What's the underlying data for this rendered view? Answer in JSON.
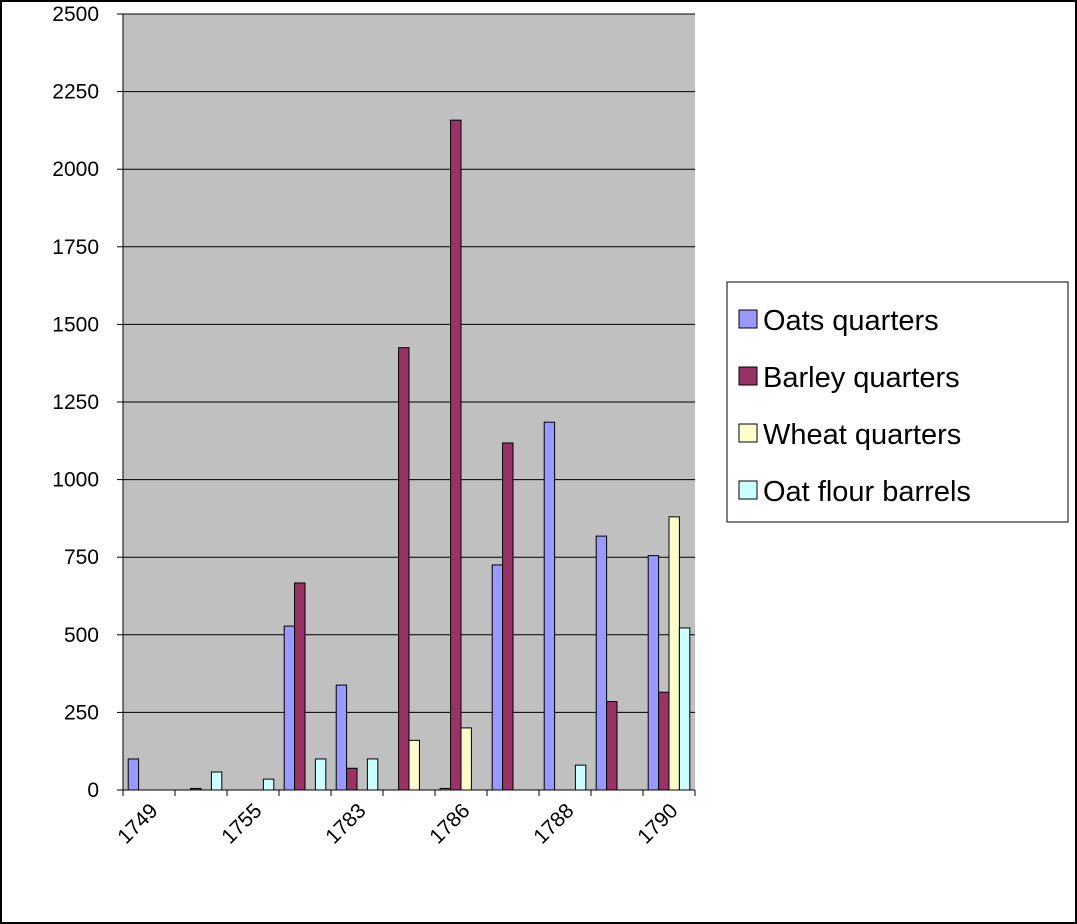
{
  "chart_data": {
    "type": "bar",
    "categories": [
      "1749",
      null,
      "1755",
      null,
      "1783",
      null,
      "1786",
      null,
      "1788",
      null,
      "1790"
    ],
    "series": [
      {
        "name": "Oats quarters",
        "color": "#9999ff",
        "values": [
          100,
          0,
          0,
          528,
          338,
          0,
          5,
          725,
          1185,
          818,
          755
        ]
      },
      {
        "name": "Barley quarters",
        "color": "#993366",
        "values": [
          0,
          5,
          0,
          667,
          70,
          1425,
          2158,
          1118,
          0,
          285,
          315
        ]
      },
      {
        "name": "Wheat quarters",
        "color": "#ffffcc",
        "values": [
          0,
          0,
          0,
          0,
          0,
          160,
          200,
          0,
          0,
          0,
          880
        ]
      },
      {
        "name": "Oat flour barrels",
        "color": "#ccffff",
        "values": [
          0,
          58,
          35,
          100,
          100,
          0,
          0,
          0,
          80,
          0,
          522
        ]
      }
    ],
    "ylim": [
      0,
      2500
    ],
    "yticks": [
      0,
      250,
      500,
      750,
      1000,
      1250,
      1500,
      1750,
      2000,
      2250,
      2500
    ],
    "grid": true,
    "legend": "right"
  }
}
